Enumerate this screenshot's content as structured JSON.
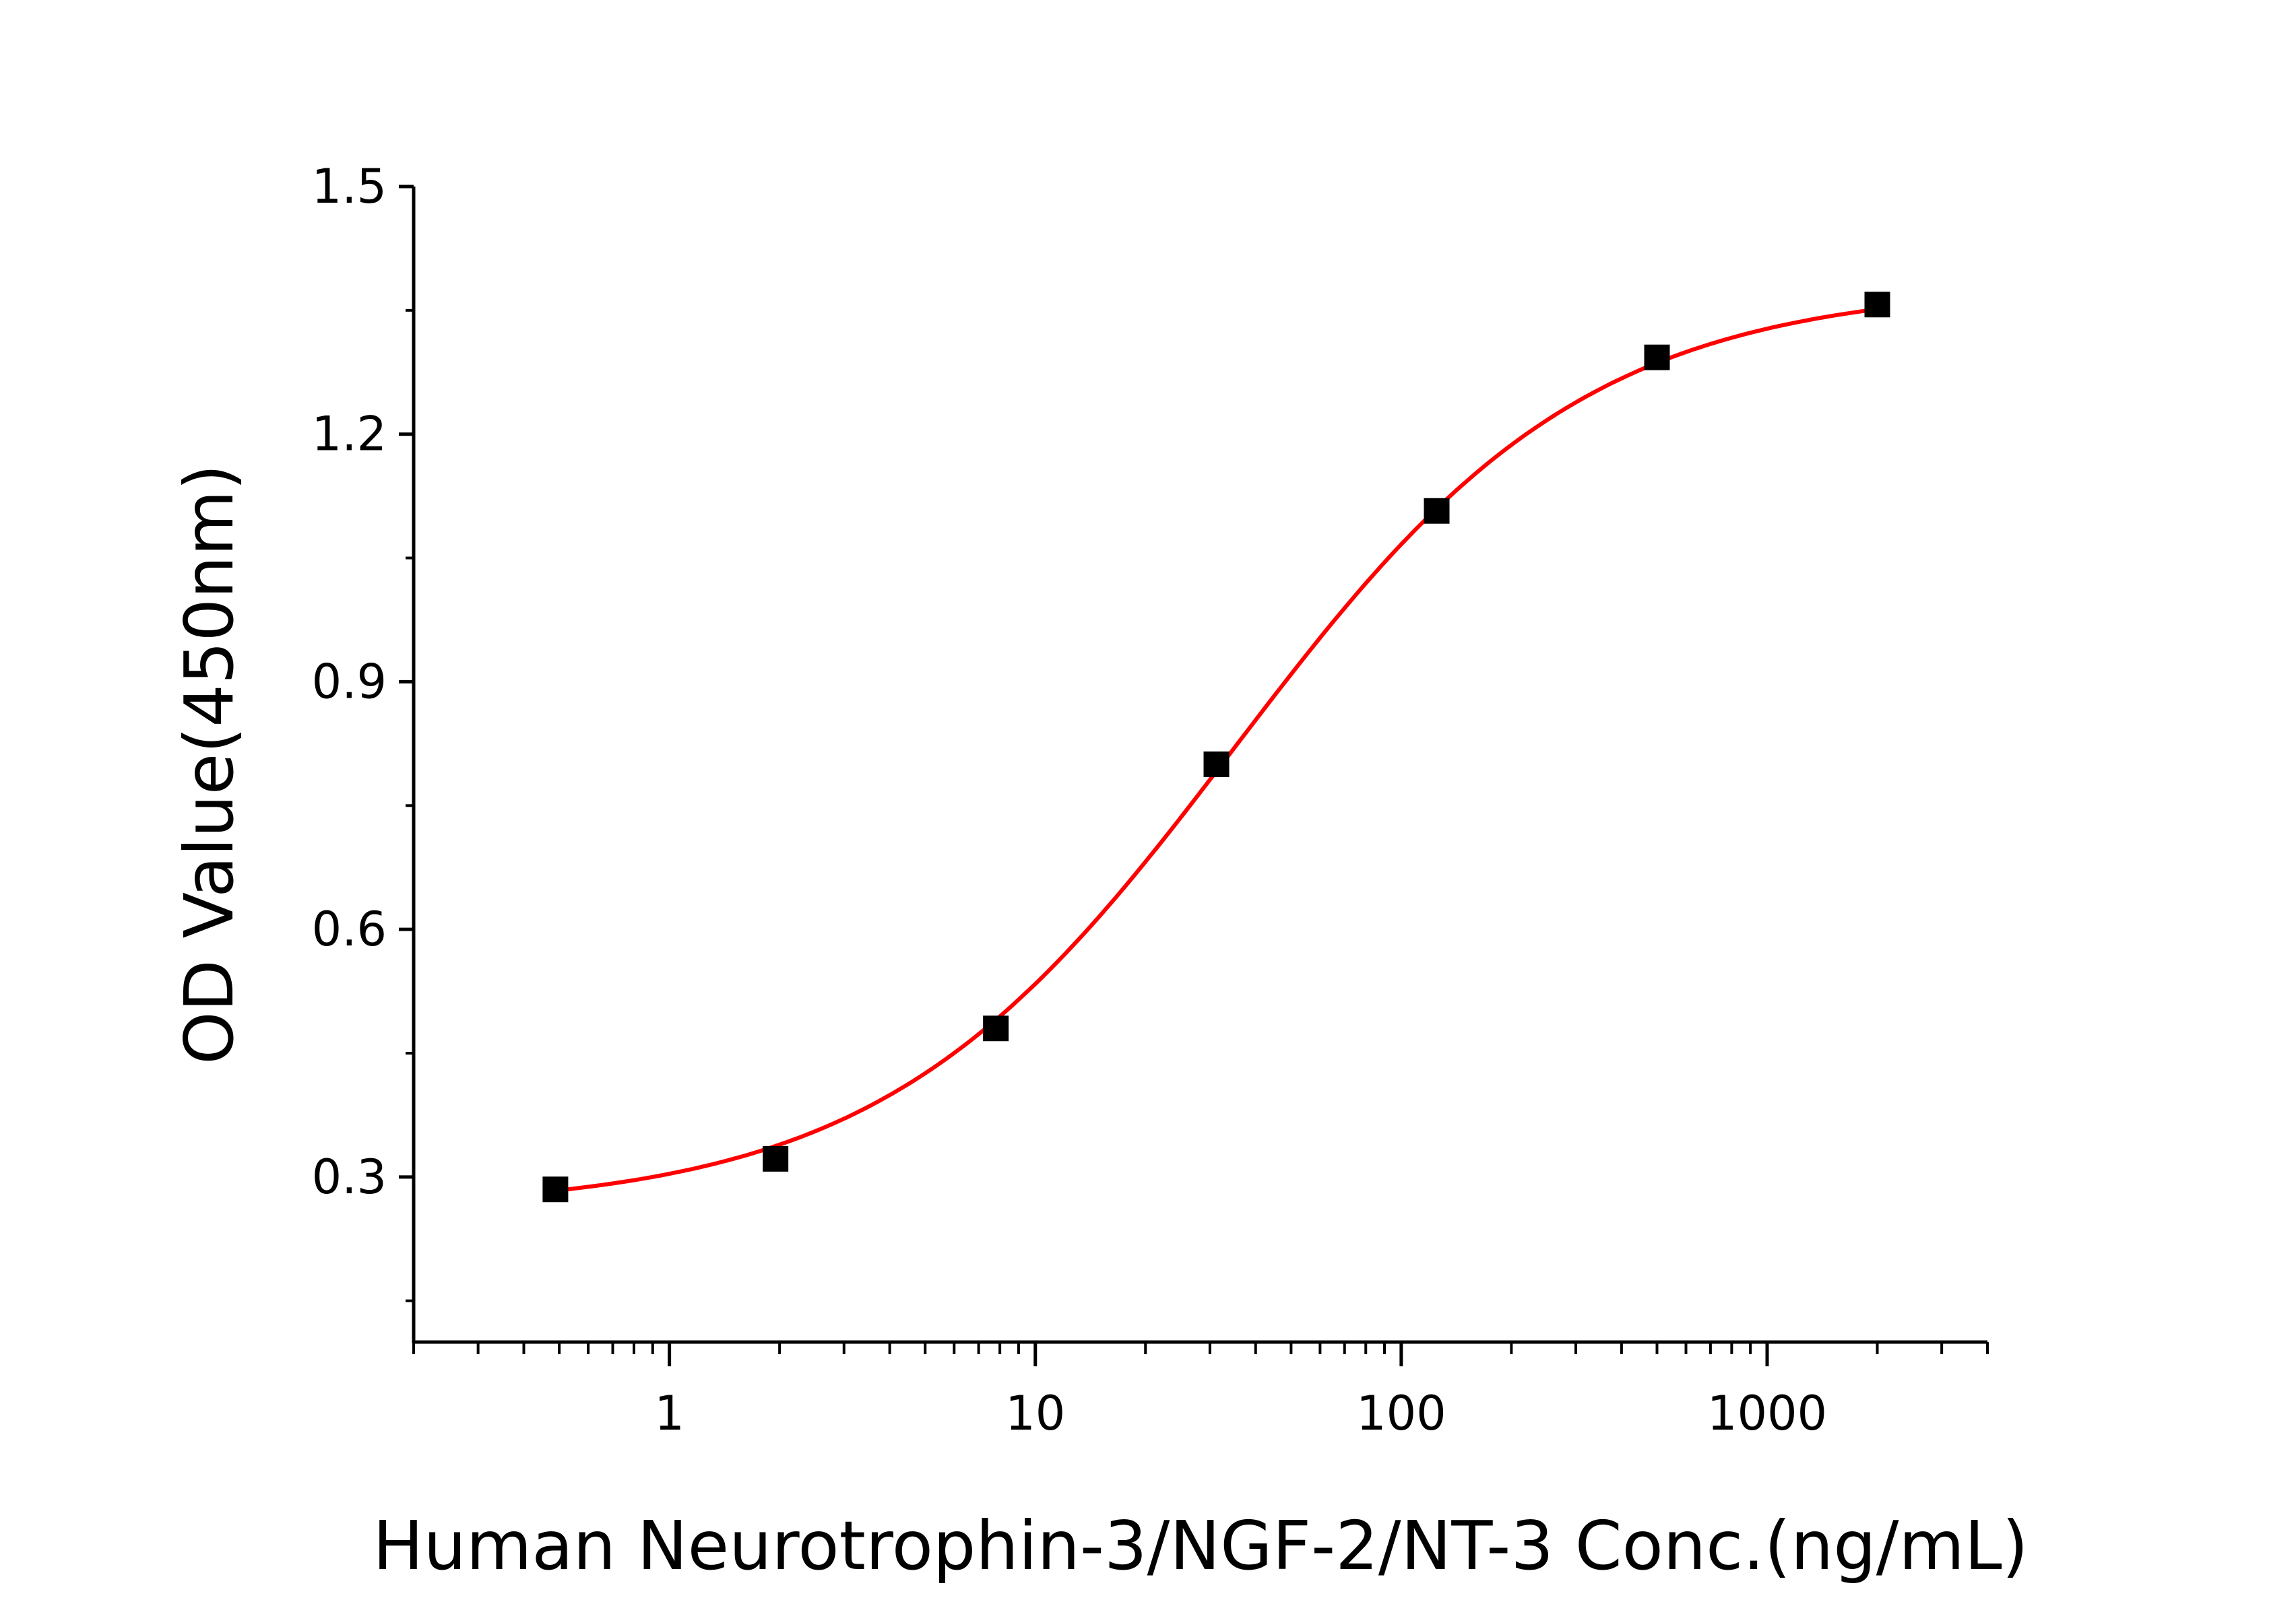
{
  "chart_data": {
    "type": "scatter",
    "title": "",
    "xlabel": "Human Neurotrophin-3/NGF-2/NT-3 Conc.(ng/mL)",
    "ylabel": "OD Value(450nm)",
    "xscale": "log",
    "xlim": [
      0.2,
      4000
    ],
    "ylim": [
      0.1,
      1.5
    ],
    "xticks": [
      1,
      10,
      100,
      1000
    ],
    "xtick_labels": [
      "1",
      "10",
      "100",
      "1000"
    ],
    "yticks": [
      0.3,
      0.6,
      0.9,
      1.2,
      1.5
    ],
    "ytick_labels": [
      "0.3",
      "0.6",
      "0.9",
      "1.2",
      "1.5"
    ],
    "grid": false,
    "series": [
      {
        "marker": "square",
        "color": "#000000",
        "x": [
          0.488,
          1.95,
          7.8,
          31.25,
          125,
          500,
          2000
        ],
        "y": [
          0.285,
          0.322,
          0.48,
          0.8,
          1.107,
          1.293,
          1.357
        ]
      }
    ],
    "fit_curve": {
      "model": "4PL",
      "color": "#ff0000",
      "bottom": 0.26,
      "top": 1.38,
      "ec50": 35,
      "hill": 0.9
    }
  }
}
